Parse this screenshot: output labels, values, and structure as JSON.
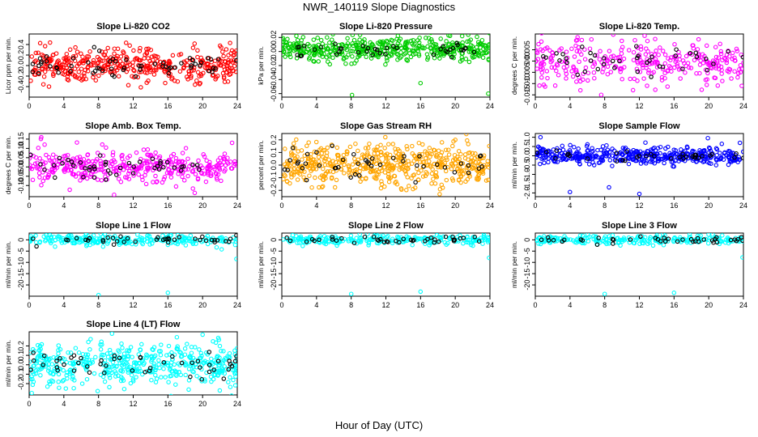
{
  "figure": {
    "title": "NWR_140119  Slope Diagnostics",
    "xlabel": "Hour of Day (UTC)"
  },
  "chart_data": [
    {
      "type": "scatter",
      "title": "Slope Li-820 CO2",
      "ylabel": "Licor ppm per min.",
      "xlim": [
        0,
        24
      ],
      "xticks": [
        "0",
        "4",
        "8",
        "12",
        "16",
        "20",
        "24"
      ],
      "ylim": [
        -0.6,
        0.6
      ],
      "yticks": [
        "-0.4",
        "-0.2",
        "0.0",
        "0.2",
        "0.4"
      ],
      "color": "#ff0000",
      "n_points": 420,
      "center": 0.0,
      "spread": 0.16,
      "highlight_color": "#000000",
      "n_highlight": 45,
      "series": [
        {
          "name": "black",
          "x": [
            0.4,
            2.0,
            3.2,
            5.1,
            6.8,
            7.5,
            8.1,
            9.6,
            11.2,
            12.8,
            14.5,
            16.3,
            18.9,
            20.6,
            21.8,
            23.9
          ],
          "y": [
            -0.12,
            0.08,
            -0.05,
            0.14,
            0.06,
            0.35,
            0.28,
            -0.18,
            0.11,
            -0.08,
            0.03,
            -0.04,
            0.1,
            0.14,
            0.12,
            0.1
          ]
        }
      ]
    },
    {
      "type": "scatter",
      "title": "Slope Li-820 Pressure",
      "ylabel": "kPa per min.",
      "xlim": [
        0,
        24
      ],
      "xticks": [
        "0",
        "4",
        "8",
        "12",
        "16",
        "20",
        "24"
      ],
      "ylim": [
        -0.065,
        0.025
      ],
      "yticks": [
        "-0.06",
        "-0.04",
        "-0.02",
        "0.00",
        "0.02"
      ],
      "color": "#00cc00",
      "n_points": 460,
      "center": 0.003,
      "spread": 0.008,
      "highlight_color": "#000000",
      "n_highlight": 40,
      "series": [
        {
          "name": "outliers",
          "x": [
            8.1,
            16.0,
            23.8,
            20.8,
            21.5
          ],
          "y": [
            -0.062,
            -0.045,
            -0.06,
            0.022,
            0.024
          ]
        }
      ]
    },
    {
      "type": "scatter",
      "title": "Slope Li-820 Temp.",
      "ylabel": "degrees C per min.",
      "xlim": [
        0,
        24
      ],
      "xticks": [
        "0",
        "4",
        "8",
        "12",
        "16",
        "20",
        "24"
      ],
      "ylim": [
        -0.016,
        0.012
      ],
      "yticks": [
        "-0.015",
        "-0.010",
        "-0.005",
        "0.000",
        "0.005"
      ],
      "color": "#ff00ff",
      "n_points": 320,
      "center": 0.0,
      "spread": 0.005,
      "highlight_color": "#000000",
      "n_highlight": 40,
      "series": [
        {
          "name": "outliers",
          "x": [
            23.8,
            5.2,
            7.6
          ],
          "y": [
            -0.011,
            -0.013,
            -0.015
          ]
        }
      ]
    },
    {
      "type": "scatter",
      "title": "Slope Amb. Box Temp.",
      "ylabel": "degrees C per min.",
      "xlim": [
        0,
        24
      ],
      "xticks": [
        "0",
        "4",
        "8",
        "12",
        "16",
        "20",
        "24"
      ],
      "ylim": [
        -0.16,
        0.18
      ],
      "yticks": [
        "-0.10",
        "-0.05",
        "0.00",
        "0.05",
        "0.10",
        "0.15"
      ],
      "color": "#ff00ff",
      "n_points": 380,
      "center": 0.0,
      "spread": 0.045,
      "highlight_color": "#000000",
      "n_highlight": 45,
      "series": [
        {
          "name": "outliers",
          "x": [
            1.4,
            9.8,
            19.1,
            23.4
          ],
          "y": [
            0.16,
            -0.15,
            -0.14,
            0.13
          ]
        }
      ]
    },
    {
      "type": "scatter",
      "title": "Slope Gas Stream RH",
      "ylabel": "percent per min.",
      "xlim": [
        0,
        24
      ],
      "xticks": [
        "0",
        "4",
        "8",
        "12",
        "16",
        "20",
        "24"
      ],
      "ylim": [
        -0.25,
        0.25
      ],
      "yticks": [
        "-0.2",
        "-0.1",
        "0.0",
        "0.1",
        "0.2"
      ],
      "color": "#ffa500",
      "n_points": 520,
      "center": 0.0,
      "spread": 0.08,
      "highlight_color": "#000000",
      "n_highlight": 45,
      "series": [
        {
          "name": "outliers",
          "x": [
            18.2,
            20.0
          ],
          "y": [
            -0.23,
            0.2
          ]
        }
      ]
    },
    {
      "type": "scatter",
      "title": "Slope Sample Flow",
      "ylabel": "ml/min per min.",
      "xlim": [
        0,
        24
      ],
      "xticks": [
        "0",
        "4",
        "8",
        "12",
        "16",
        "20",
        "24"
      ],
      "ylim": [
        -2.2,
        1.2
      ],
      "yticks": [
        "-2.0",
        "-1.5",
        "-1.0",
        "-0.5",
        "0.0",
        "0.5",
        "1.0"
      ],
      "color": "#0000ff",
      "n_points": 440,
      "center": 0.0,
      "spread": 0.22,
      "highlight_color": "#000000",
      "n_highlight": 35,
      "series": [
        {
          "name": "outliers",
          "x": [
            0.6,
            4.0,
            8.5,
            12.0,
            19.9,
            23.6
          ],
          "y": [
            1.0,
            -1.95,
            -1.7,
            -2.05,
            0.95,
            0.7
          ]
        }
      ]
    },
    {
      "type": "scatter",
      "title": "Slope Line 1 Flow",
      "ylabel": "ml/min per min.",
      "xlim": [
        0,
        24
      ],
      "xticks": [
        "0",
        "4",
        "8",
        "12",
        "16",
        "20",
        "24"
      ],
      "ylim": [
        -25,
        3
      ],
      "yticks": [
        "-20",
        "-15",
        "-10",
        "-5",
        "0"
      ],
      "color": "#00ffff",
      "n_points": 260,
      "center": 0.0,
      "spread": 1.2,
      "highlight_color": "#000000",
      "n_highlight": 40,
      "series": [
        {
          "name": "outliers",
          "x": [
            8.0,
            16.0,
            23.9,
            22.2
          ],
          "y": [
            -24.5,
            -23.5,
            -8.5,
            -4.2
          ]
        }
      ]
    },
    {
      "type": "scatter",
      "title": "Slope Line 2 Flow",
      "ylabel": "ml/min per min.",
      "xlim": [
        0,
        24
      ],
      "xticks": [
        "0",
        "4",
        "8",
        "12",
        "16",
        "20",
        "24"
      ],
      "ylim": [
        -25,
        3
      ],
      "yticks": [
        "-20",
        "-15",
        "-10",
        "-5",
        "0"
      ],
      "color": "#00ffff",
      "n_points": 240,
      "center": 0.0,
      "spread": 1.0,
      "highlight_color": "#000000",
      "n_highlight": 40,
      "series": [
        {
          "name": "outliers",
          "x": [
            8.0,
            16.0,
            23.9
          ],
          "y": [
            -24.0,
            -23.0,
            -8.0
          ]
        }
      ]
    },
    {
      "type": "scatter",
      "title": "Slope Line 3 Flow",
      "ylabel": "ml/min per min.",
      "xlim": [
        0,
        24
      ],
      "xticks": [
        "0",
        "4",
        "8",
        "12",
        "16",
        "20",
        "24"
      ],
      "ylim": [
        -25,
        3
      ],
      "yticks": [
        "-20",
        "-15",
        "-10",
        "-5",
        "0"
      ],
      "color": "#00ffff",
      "n_points": 240,
      "center": 0.0,
      "spread": 1.0,
      "highlight_color": "#000000",
      "n_highlight": 40,
      "series": [
        {
          "name": "outliers",
          "x": [
            8.0,
            16.0,
            23.9
          ],
          "y": [
            -24.0,
            -23.5,
            -7.8
          ]
        }
      ]
    },
    {
      "type": "scatter",
      "title": "Slope Line 4 (LT) Flow",
      "ylabel": "ml/min per min.",
      "xlim": [
        0,
        24
      ],
      "xticks": [
        "0",
        "4",
        "8",
        "12",
        "16",
        "20",
        "24"
      ],
      "ylim": [
        -0.32,
        0.35
      ],
      "yticks": [
        "-0.2",
        "-0.1",
        "0.0",
        "0.1",
        "0.2"
      ],
      "color": "#00ffff",
      "n_points": 480,
      "center": 0.0,
      "spread": 0.11,
      "highlight_color": "#000000",
      "n_highlight": 50,
      "series": [
        {
          "name": "outliers",
          "x": [
            0.3,
            7.9,
            20.0
          ],
          "y": [
            -0.3,
            -0.28,
            0.32
          ]
        }
      ]
    }
  ]
}
